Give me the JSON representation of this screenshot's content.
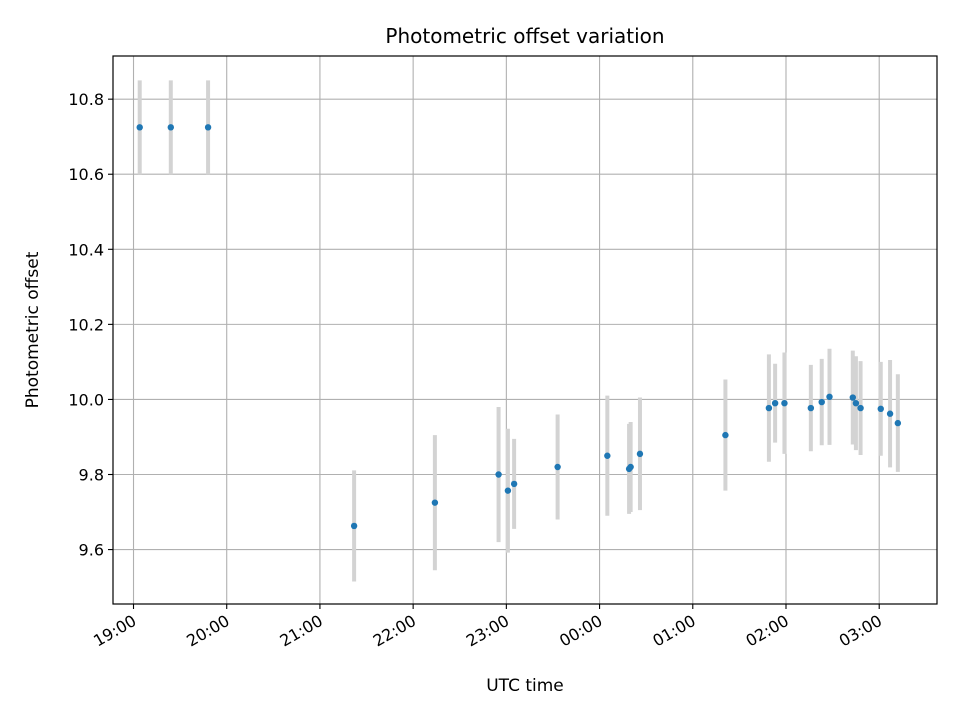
{
  "chart_data": {
    "type": "scatter",
    "title": "Photometric offset variation",
    "xlabel": "UTC time",
    "ylabel": "Photometric offset",
    "x_tick_labels": [
      "19:00",
      "20:00",
      "21:00",
      "22:00",
      "23:00",
      "00:00",
      "01:00",
      "02:00",
      "03:00"
    ],
    "y_tick_labels": [
      "9.6",
      "9.8",
      "10.0",
      "10.2",
      "10.4",
      "10.6",
      "10.8"
    ],
    "ylim": [
      9.455,
      10.915
    ],
    "xlim_hours": [
      18.78,
      27.62
    ],
    "grid": true,
    "colors": {
      "points": "#1f77b4",
      "errorbars": "#d3d3d3",
      "grid": "#b0b0b0"
    },
    "points": [
      {
        "t": "19:04",
        "y": 10.725,
        "err": 0.125
      },
      {
        "t": "19:24",
        "y": 10.725,
        "err": 0.125
      },
      {
        "t": "19:48",
        "y": 10.725,
        "err": 0.125
      },
      {
        "t": "21:22",
        "y": 9.663,
        "err": 0.148
      },
      {
        "t": "22:14",
        "y": 9.725,
        "err": 0.18
      },
      {
        "t": "22:55",
        "y": 9.8,
        "err": 0.18
      },
      {
        "t": "23:01",
        "y": 9.757,
        "err": 0.165
      },
      {
        "t": "23:05",
        "y": 9.775,
        "err": 0.12
      },
      {
        "t": "23:33",
        "y": 9.82,
        "err": 0.14
      },
      {
        "t": "00:05",
        "y": 9.85,
        "err": 0.16
      },
      {
        "t": "00:19",
        "y": 9.815,
        "err": 0.12
      },
      {
        "t": "00:20",
        "y": 9.82,
        "err": 0.12
      },
      {
        "t": "00:26",
        "y": 9.855,
        "err": 0.15
      },
      {
        "t": "01:21",
        "y": 9.905,
        "err": 0.148
      },
      {
        "t": "01:49",
        "y": 9.977,
        "err": 0.143
      },
      {
        "t": "01:53",
        "y": 9.99,
        "err": 0.105
      },
      {
        "t": "01:59",
        "y": 9.99,
        "err": 0.135
      },
      {
        "t": "02:16",
        "y": 9.977,
        "err": 0.115
      },
      {
        "t": "02:23",
        "y": 9.993,
        "err": 0.115
      },
      {
        "t": "02:28",
        "y": 10.007,
        "err": 0.128
      },
      {
        "t": "02:43",
        "y": 10.005,
        "err": 0.125
      },
      {
        "t": "02:45",
        "y": 9.99,
        "err": 0.125
      },
      {
        "t": "02:48",
        "y": 9.977,
        "err": 0.125
      },
      {
        "t": "03:01",
        "y": 9.975,
        "err": 0.125
      },
      {
        "t": "03:07",
        "y": 9.962,
        "err": 0.143
      },
      {
        "t": "03:12",
        "y": 9.937,
        "err": 0.13
      }
    ]
  }
}
